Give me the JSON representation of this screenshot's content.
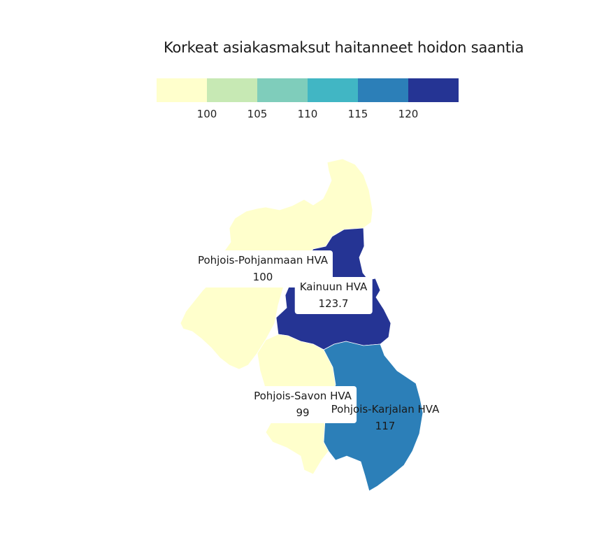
{
  "title": "Korkeat asiakasmaksut haitanneet hoidon saantia",
  "legend": {
    "colors": [
      "#ffffcc",
      "#c7e9b4",
      "#7fcdbb",
      "#41b6c4",
      "#2c7fb8",
      "#253494"
    ],
    "ticks": [
      "100",
      "105",
      "110",
      "115",
      "120"
    ]
  },
  "regions": [
    {
      "name": "Pohjois-Pohjanmaan HVA",
      "value": "100",
      "color": "#ffffcc"
    },
    {
      "name": "Kainuun HVA",
      "value": "123.7",
      "color": "#253494"
    },
    {
      "name": "Pohjois-Savon HVA",
      "value": "99",
      "color": "#ffffcc"
    },
    {
      "name": "Pohjois-Karjalan HVA",
      "value": "117",
      "color": "#2c7fb8"
    }
  ]
}
